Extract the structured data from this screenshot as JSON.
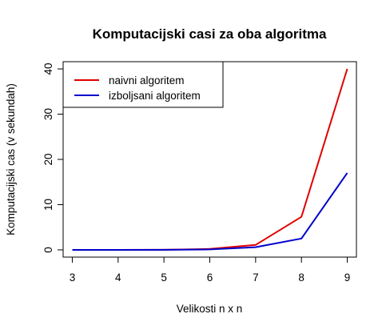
{
  "chart_data": {
    "type": "line",
    "title": "Komputacijski casi za oba algoritma",
    "xlabel": "Velikosti n x n",
    "ylabel": "Komputacijski cas (v sekundah)",
    "x": [
      3,
      4,
      5,
      6,
      7,
      8,
      9
    ],
    "xlim": [
      2.8,
      9.2
    ],
    "ylim": [
      -1.6,
      41.6
    ],
    "xticks": [
      3,
      4,
      5,
      6,
      7,
      8,
      9
    ],
    "yticks": [
      0,
      10,
      20,
      30,
      40
    ],
    "legend_position": "top-left",
    "series": [
      {
        "name": "naivni algoritem",
        "color": "#e00000",
        "values": [
          0,
          0,
          0.02,
          0.2,
          1.1,
          7.3,
          40
        ]
      },
      {
        "name": "izboljsani algoritem",
        "color": "#0000cc",
        "values": [
          0,
          0,
          0.01,
          0.1,
          0.6,
          2.5,
          17
        ]
      }
    ]
  }
}
